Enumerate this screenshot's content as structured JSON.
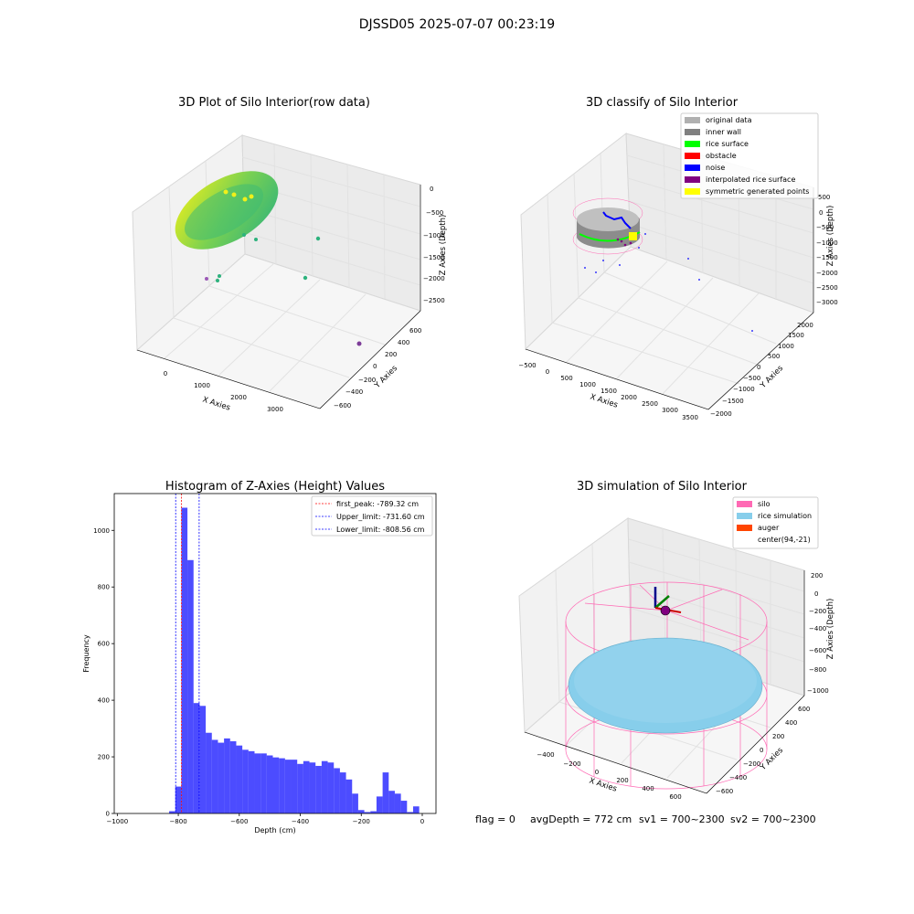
{
  "suptitle": "DJSSD05 2025-07-07 00:23:19",
  "panels": {
    "raw": {
      "title": "3D Plot of Silo Interior(row data)",
      "xlabel": "X Axies",
      "ylabel": "Y Axies",
      "zlabel": "Z Axies (Depth)",
      "xticks": [
        "0",
        "1000",
        "2000",
        "3000"
      ],
      "yticks": [
        "600",
        "400",
        "200",
        "0",
        "−200",
        "−400",
        "−600"
      ],
      "zticks": [
        "0",
        "−500",
        "−1000",
        "−1500",
        "−2000",
        "−2500"
      ]
    },
    "classify": {
      "title": "3D classify of Silo Interior",
      "xlabel": "X Axies",
      "ylabel": "Y Axies",
      "zlabel": "Z Axies (Depth)",
      "xticks": [
        "−500",
        "0",
        "500",
        "1000",
        "1500",
        "2000",
        "2500",
        "3000",
        "3500"
      ],
      "yticks": [
        "2000",
        "1500",
        "1000",
        "500",
        "0",
        "−500",
        "−1000",
        "−1500",
        "−2000"
      ],
      "zticks": [
        "500",
        "0",
        "−500",
        "−1000",
        "−1500",
        "−2000",
        "−2500",
        "−3000"
      ],
      "legend": [
        {
          "label": "original data",
          "color": "#b0b0b0"
        },
        {
          "label": "inner wall",
          "color": "#808080"
        },
        {
          "label": "rice surface",
          "color": "#00ff00"
        },
        {
          "label": "obstacle",
          "color": "#ff0000"
        },
        {
          "label": "noise",
          "color": "#0000ff"
        },
        {
          "label": "interpolated rice surface",
          "color": "#800080"
        },
        {
          "label": "symmetric generated points",
          "color": "#ffff00"
        }
      ]
    },
    "simulation": {
      "title": "3D simulation of Silo Interior",
      "xlabel": "X Axies",
      "ylabel": "Y Axies",
      "zlabel": "Z Axies (Depth)",
      "xticks": [
        "−400",
        "−200",
        "0",
        "200",
        "400",
        "600"
      ],
      "yticks": [
        "600",
        "400",
        "200",
        "0",
        "−200",
        "−400",
        "−600"
      ],
      "zticks": [
        "200",
        "0",
        "−200",
        "−400",
        "−600",
        "−800",
        "−1000"
      ],
      "legend": [
        {
          "label": "silo",
          "color": "#ff69b4"
        },
        {
          "label": "rice simulation",
          "color": "#87ceeb"
        },
        {
          "label": "auger",
          "color": "#ff4500"
        },
        {
          "label": "center(94,-21)",
          "color": ""
        }
      ]
    }
  },
  "status": {
    "flag": "flag = 0",
    "avg": "avgDepth = 772 cm",
    "sv1": "sv1 = 700~2300",
    "sv2": "sv2 = 700~2300"
  },
  "colors": {
    "bar": "#0000ff",
    "peak_line": "#ff0000",
    "limit_line": "#0000ff"
  },
  "chart_data": {
    "type": "bar",
    "title": "Histogram of Z-Axies (Height) Values",
    "xlabel": "Depth (cm)",
    "ylabel": "Frequency",
    "xlim": [
      -1010,
      45
    ],
    "ylim": [
      0,
      1130
    ],
    "xticks": [
      -1000,
      -800,
      -600,
      -400,
      -200,
      0
    ],
    "xtick_labels": [
      "−1000",
      "−800",
      "−600",
      "−400",
      "−200",
      "0"
    ],
    "yticks": [
      0,
      200,
      400,
      600,
      800,
      1000
    ],
    "bin_width": 20,
    "bin_start": -830,
    "values": [
      8,
      95,
      1080,
      895,
      390,
      380,
      285,
      260,
      250,
      265,
      255,
      240,
      225,
      220,
      212,
      212,
      205,
      198,
      195,
      190,
      190,
      175,
      185,
      180,
      168,
      185,
      180,
      160,
      145,
      120,
      70,
      12,
      5,
      8,
      60,
      145,
      80,
      70,
      45,
      5,
      25
    ],
    "lines": [
      {
        "label": "first_peak: -789.32 cm",
        "x": -789.32,
        "color": "#ff0000"
      },
      {
        "label": "Upper_limit: -731.60 cm",
        "x": -731.6,
        "color": "#0000ff"
      },
      {
        "label": "Lower_limit: -808.56 cm",
        "x": -808.56,
        "color": "#0000ff"
      }
    ],
    "legend_position": "top-right"
  }
}
